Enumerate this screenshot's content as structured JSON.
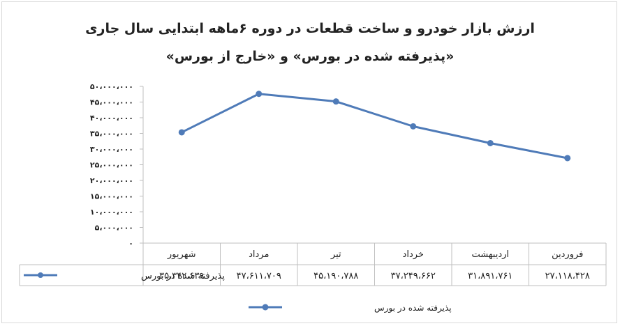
{
  "chart_data": {
    "type": "line",
    "title_line1": "ارزش بازار خودرو و ساخت قطعات در دوره ۶ماهه ابتدایی سال جاری",
    "title_line2": "«پذیرفته شده در بورس» و «خارج از بورس»",
    "categories": [
      "فروردین",
      "اردیبهشت",
      "خرداد",
      "تیر",
      "مرداد",
      "شهریور"
    ],
    "series": [
      {
        "name": "پذیرفته شده در بورس",
        "values": [
          27118428,
          31891761,
          37249662,
          45190788,
          47611709,
          35342639
        ],
        "value_labels": [
          "۲۷،۱۱۸،۴۲۸",
          "۳۱،۸۹۱،۷۶۱",
          "۳۷،۲۴۹،۶۶۲",
          "۴۵،۱۹۰،۷۸۸",
          "۴۷،۶۱۱،۷۰۹",
          "۳۵،۳۴۲،۶۳۹"
        ],
        "color": "#4f7bb8"
      }
    ],
    "ylim": [
      0,
      50000000
    ],
    "yticks": [
      {
        "value": 0,
        "label": "۰"
      },
      {
        "value": 5000000,
        "label": "۵،۰۰۰،۰۰۰"
      },
      {
        "value": 10000000,
        "label": "۱۰،۰۰۰،۰۰۰"
      },
      {
        "value": 15000000,
        "label": "۱۵،۰۰۰،۰۰۰"
      },
      {
        "value": 20000000,
        "label": "۲۰،۰۰۰،۰۰۰"
      },
      {
        "value": 25000000,
        "label": "۲۵،۰۰۰،۰۰۰"
      },
      {
        "value": 30000000,
        "label": "۳۰،۰۰۰،۰۰۰"
      },
      {
        "value": 35000000,
        "label": "۳۵،۰۰۰،۰۰۰"
      },
      {
        "value": 40000000,
        "label": "۴۰،۰۰۰،۰۰۰"
      },
      {
        "value": 45000000,
        "label": "۴۵،۰۰۰،۰۰۰"
      },
      {
        "value": 50000000,
        "label": "۵۰،۰۰۰،۰۰۰"
      }
    ],
    "grid": false,
    "data_table": true,
    "legend_position": "bottom"
  }
}
